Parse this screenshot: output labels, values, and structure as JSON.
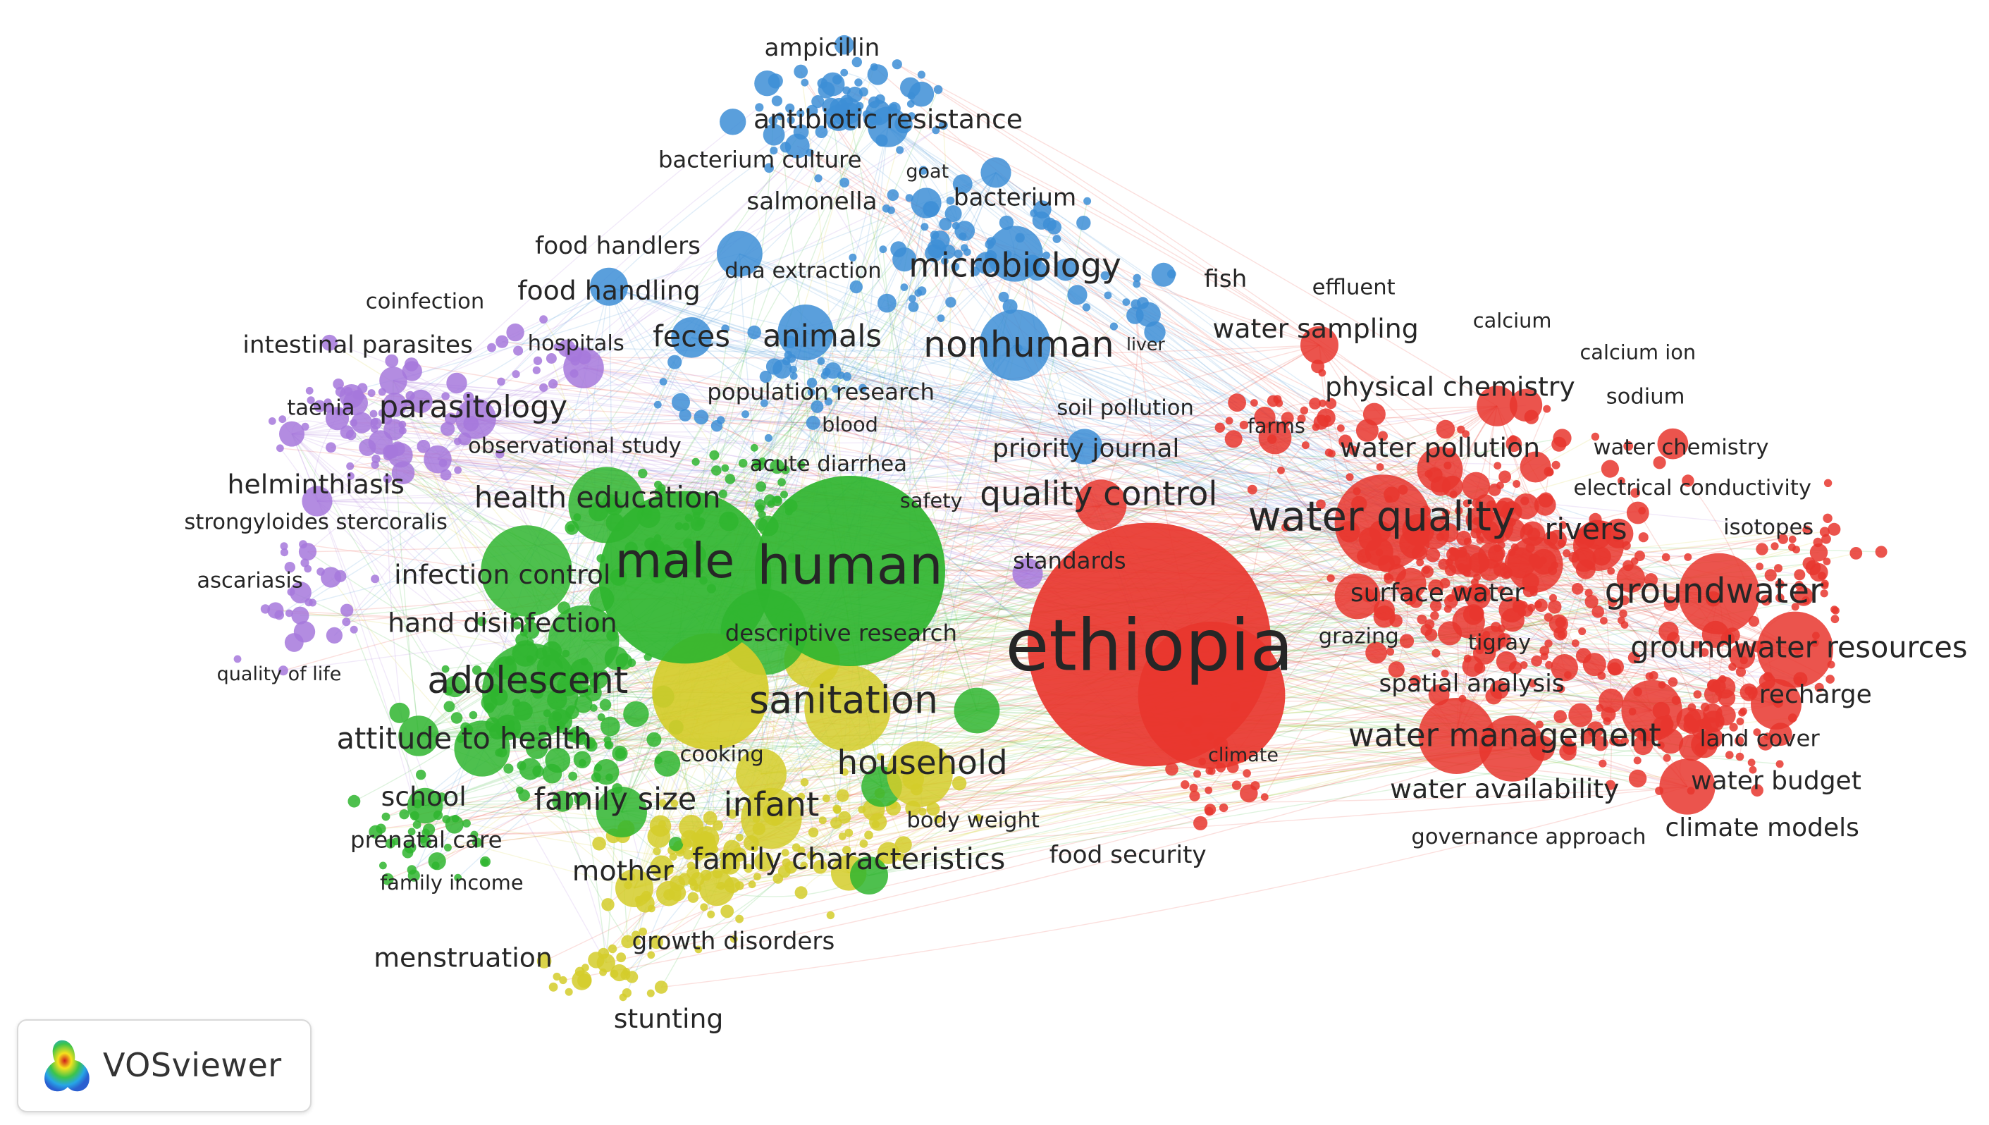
{
  "app": {
    "name": "VOSviewer"
  },
  "colors": {
    "red": "#e8362e",
    "green": "#2fb52f",
    "blue": "#3d8ed6",
    "yellow": "#d4cc2a",
    "purple": "#a678dc"
  },
  "clusters": [
    {
      "id": "red",
      "color": "#e8362e"
    },
    {
      "id": "green",
      "color": "#2fb52f"
    },
    {
      "id": "blue",
      "color": "#3d8ed6"
    },
    {
      "id": "yellow",
      "color": "#d4cc2a"
    },
    {
      "id": "purple",
      "color": "#a678dc"
    }
  ],
  "terms": [
    {
      "label": "ampicillin",
      "cluster": "blue",
      "weight": 3
    },
    {
      "label": "antibiotic resistance",
      "cluster": "blue",
      "weight": 4
    },
    {
      "label": "bacterium culture",
      "cluster": "blue",
      "weight": 3
    },
    {
      "label": "goat",
      "cluster": "blue",
      "weight": 1
    },
    {
      "label": "salmonella",
      "cluster": "blue",
      "weight": 3
    },
    {
      "label": "bacterium",
      "cluster": "blue",
      "weight": 3
    },
    {
      "label": "food handlers",
      "cluster": "blue",
      "weight": 3
    },
    {
      "label": "dna extraction",
      "cluster": "blue",
      "weight": 2
    },
    {
      "label": "microbiology",
      "cluster": "blue",
      "weight": 6
    },
    {
      "label": "fish",
      "cluster": "red",
      "weight": 2
    },
    {
      "label": "effluent",
      "cluster": "red",
      "weight": 2
    },
    {
      "label": "coinfection",
      "cluster": "purple",
      "weight": 2
    },
    {
      "label": "food handling",
      "cluster": "blue",
      "weight": 4
    },
    {
      "label": "calcium",
      "cluster": "red",
      "weight": 2
    },
    {
      "label": "intestinal parasites",
      "cluster": "purple",
      "weight": 3
    },
    {
      "label": "hospitals",
      "cluster": "purple",
      "weight": 2
    },
    {
      "label": "feces",
      "cluster": "blue",
      "weight": 4
    },
    {
      "label": "animals",
      "cluster": "blue",
      "weight": 5
    },
    {
      "label": "nonhuman",
      "cluster": "blue",
      "weight": 7
    },
    {
      "label": "liver",
      "cluster": "blue",
      "weight": 1
    },
    {
      "label": "water sampling",
      "cluster": "red",
      "weight": 4
    },
    {
      "label": "calcium ion",
      "cluster": "red",
      "weight": 2
    },
    {
      "label": "physical chemistry",
      "cluster": "red",
      "weight": 4
    },
    {
      "label": "sodium",
      "cluster": "red",
      "weight": 2
    },
    {
      "label": "taenia",
      "cluster": "purple",
      "weight": 2
    },
    {
      "label": "parasitology",
      "cluster": "purple",
      "weight": 5
    },
    {
      "label": "population research",
      "cluster": "blue",
      "weight": 3
    },
    {
      "label": "soil pollution",
      "cluster": "red",
      "weight": 2
    },
    {
      "label": "farms",
      "cluster": "red",
      "weight": 2
    },
    {
      "label": "blood",
      "cluster": "blue",
      "weight": 1
    },
    {
      "label": "observational study",
      "cluster": "purple",
      "weight": 2
    },
    {
      "label": "priority journal",
      "cluster": "blue",
      "weight": 4
    },
    {
      "label": "water pollution",
      "cluster": "red",
      "weight": 4
    },
    {
      "label": "water chemistry",
      "cluster": "red",
      "weight": 2
    },
    {
      "label": "acute diarrhea",
      "cluster": "green",
      "weight": 2
    },
    {
      "label": "helminthiasis",
      "cluster": "purple",
      "weight": 4
    },
    {
      "label": "electrical conductivity",
      "cluster": "red",
      "weight": 2
    },
    {
      "label": "health education",
      "cluster": "green",
      "weight": 5
    },
    {
      "label": "safety",
      "cluster": "green",
      "weight": 1
    },
    {
      "label": "quality control",
      "cluster": "red",
      "weight": 6
    },
    {
      "label": "water quality",
      "cluster": "red",
      "weight": 9
    },
    {
      "label": "strongyloides stercoralis",
      "cluster": "purple",
      "weight": 2
    },
    {
      "label": "rivers",
      "cluster": "red",
      "weight": 4
    },
    {
      "label": "isotopes",
      "cluster": "red",
      "weight": 2
    },
    {
      "label": "standards",
      "cluster": "red",
      "weight": 2
    },
    {
      "label": "male",
      "cluster": "green",
      "weight": 10
    },
    {
      "label": "human",
      "cluster": "green",
      "weight": 14
    },
    {
      "label": "infection control",
      "cluster": "green",
      "weight": 3
    },
    {
      "label": "ascariasis",
      "cluster": "purple",
      "weight": 2
    },
    {
      "label": "surface water",
      "cluster": "red",
      "weight": 4
    },
    {
      "label": "groundwater",
      "cluster": "red",
      "weight": 6
    },
    {
      "label": "hand disinfection",
      "cluster": "green",
      "weight": 4
    },
    {
      "label": "descriptive research",
      "cluster": "yellow",
      "weight": 3
    },
    {
      "label": "ethiopia",
      "cluster": "red",
      "weight": 20
    },
    {
      "label": "grazing",
      "cluster": "red",
      "weight": 2
    },
    {
      "label": "tigray",
      "cluster": "red",
      "weight": 2
    },
    {
      "label": "groundwater resources",
      "cluster": "red",
      "weight": 5
    },
    {
      "label": "quality of life",
      "cluster": "purple",
      "weight": 1
    },
    {
      "label": "adolescent",
      "cluster": "green",
      "weight": 7
    },
    {
      "label": "spatial analysis",
      "cluster": "red",
      "weight": 3
    },
    {
      "label": "recharge",
      "cluster": "red",
      "weight": 3
    },
    {
      "label": "sanitation",
      "cluster": "yellow",
      "weight": 7
    },
    {
      "label": "water management",
      "cluster": "red",
      "weight": 6
    },
    {
      "label": "land cover",
      "cluster": "red",
      "weight": 2
    },
    {
      "label": "attitude to health",
      "cluster": "green",
      "weight": 5
    },
    {
      "label": "cooking",
      "cluster": "yellow",
      "weight": 2
    },
    {
      "label": "climate",
      "cluster": "red",
      "weight": 2
    },
    {
      "label": "household",
      "cluster": "yellow",
      "weight": 5
    },
    {
      "label": "water availability",
      "cluster": "red",
      "weight": 4
    },
    {
      "label": "water budget",
      "cluster": "red",
      "weight": 3
    },
    {
      "label": "school",
      "cluster": "green",
      "weight": 3
    },
    {
      "label": "family size",
      "cluster": "green",
      "weight": 4
    },
    {
      "label": "infant",
      "cluster": "yellow",
      "weight": 5
    },
    {
      "label": "body weight",
      "cluster": "yellow",
      "weight": 2
    },
    {
      "label": "prenatal care",
      "cluster": "green",
      "weight": 3
    },
    {
      "label": "governance approach",
      "cluster": "red",
      "weight": 2
    },
    {
      "label": "climate models",
      "cluster": "red",
      "weight": 3
    },
    {
      "label": "food security",
      "cluster": "red",
      "weight": 3
    },
    {
      "label": "family characteristics",
      "cluster": "yellow",
      "weight": 4
    },
    {
      "label": "mother",
      "cluster": "yellow",
      "weight": 3
    },
    {
      "label": "family income",
      "cluster": "green",
      "weight": 2
    },
    {
      "label": "growth disorders",
      "cluster": "yellow",
      "weight": 3
    },
    {
      "label": "menstruation",
      "cluster": "green",
      "weight": 3
    },
    {
      "label": "stunting",
      "cluster": "yellow",
      "weight": 3
    }
  ]
}
